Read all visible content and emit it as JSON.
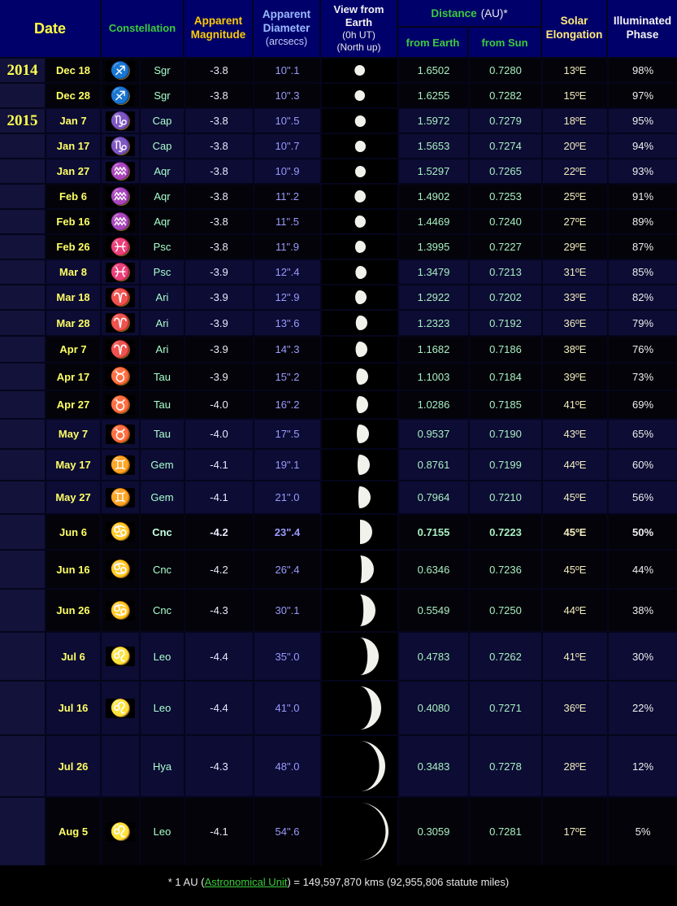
{
  "header": {
    "date": "Date",
    "constellation": "Constellation",
    "magnitude": [
      "Apparent",
      "Magnitude"
    ],
    "diameter": [
      "Apparent",
      "Diameter",
      "(arcsecs)"
    ],
    "view": [
      "View from",
      "Earth",
      "(0h UT)",
      "(North up)"
    ],
    "distance_title": "Distance",
    "distance_unit": "(AU)*",
    "from_earth": "from Earth",
    "from_sun": "from Sun",
    "elongation": [
      "Solar",
      "Elongation"
    ],
    "phase": [
      "Illuminated",
      "Phase"
    ]
  },
  "colors": {
    "header_bg": "#00006b",
    "row_navy": "#0c0c34",
    "row_black": "#030309",
    "date_yellow": "#ffff66",
    "year_yellow": "#ffff4d",
    "constellation_green": "#33cc33",
    "abbr_aqua": "#aaffcf",
    "magnitude_header_gold": "#ffcc00",
    "diameter_blue": "#9b9bff",
    "distance_green": "#a9efc2",
    "elongation_cream": "#f3ecbe",
    "phase_white": "#efefef",
    "link_green": "#3ccc3c",
    "moon_fill": "#f2f2ec"
  },
  "rows": [
    {
      "year": "2014",
      "date": "Dec 18",
      "icon": "sagittarius",
      "constellation": "Sgr",
      "magnitude": "-3.8",
      "diameter": "10\".1",
      "arcsec": 10.1,
      "from_earth": "1.6502",
      "from_sun": "0.7280",
      "elongation": "13ºE",
      "phase": "98%",
      "phase_percent": 98,
      "shade": "black",
      "bold": false
    },
    {
      "year": "",
      "date": "Dec 28",
      "icon": "sagittarius",
      "constellation": "Sgr",
      "magnitude": "-3.8",
      "diameter": "10\".3",
      "arcsec": 10.3,
      "from_earth": "1.6255",
      "from_sun": "0.7282",
      "elongation": "15ºE",
      "phase": "97%",
      "phase_percent": 97,
      "shade": "black",
      "bold": false
    },
    {
      "year": "2015",
      "date": "Jan 7",
      "icon": "capricornus",
      "constellation": "Cap",
      "magnitude": "-3.8",
      "diameter": "10\".5",
      "arcsec": 10.5,
      "from_earth": "1.5972",
      "from_sun": "0.7279",
      "elongation": "18ºE",
      "phase": "95%",
      "phase_percent": 95,
      "shade": "navy",
      "bold": false
    },
    {
      "year": "",
      "date": "Jan 17",
      "icon": "capricornus",
      "constellation": "Cap",
      "magnitude": "-3.8",
      "diameter": "10\".7",
      "arcsec": 10.7,
      "from_earth": "1.5653",
      "from_sun": "0.7274",
      "elongation": "20ºE",
      "phase": "94%",
      "phase_percent": 94,
      "shade": "navy",
      "bold": false
    },
    {
      "year": "",
      "date": "Jan 27",
      "icon": "aquarius",
      "constellation": "Aqr",
      "magnitude": "-3.8",
      "diameter": "10\".9",
      "arcsec": 10.9,
      "from_earth": "1.5297",
      "from_sun": "0.7265",
      "elongation": "22ºE",
      "phase": "93%",
      "phase_percent": 93,
      "shade": "navy",
      "bold": false
    },
    {
      "year": "",
      "date": "Feb 6",
      "icon": "aquarius",
      "constellation": "Aqr",
      "magnitude": "-3.8",
      "diameter": "11\".2",
      "arcsec": 11.2,
      "from_earth": "1.4902",
      "from_sun": "0.7253",
      "elongation": "25ºE",
      "phase": "91%",
      "phase_percent": 91,
      "shade": "black",
      "bold": false
    },
    {
      "year": "",
      "date": "Feb 16",
      "icon": "aquarius",
      "constellation": "Aqr",
      "magnitude": "-3.8",
      "diameter": "11\".5",
      "arcsec": 11.5,
      "from_earth": "1.4469",
      "from_sun": "0.7240",
      "elongation": "27ºE",
      "phase": "89%",
      "phase_percent": 89,
      "shade": "black",
      "bold": false
    },
    {
      "year": "",
      "date": "Feb 26",
      "icon": "pisces",
      "constellation": "Psc",
      "magnitude": "-3.8",
      "diameter": "11\".9",
      "arcsec": 11.9,
      "from_earth": "1.3995",
      "from_sun": "0.7227",
      "elongation": "29ºE",
      "phase": "87%",
      "phase_percent": 87,
      "shade": "black",
      "bold": false
    },
    {
      "year": "",
      "date": "Mar 8",
      "icon": "pisces",
      "constellation": "Psc",
      "magnitude": "-3.9",
      "diameter": "12\".4",
      "arcsec": 12.4,
      "from_earth": "1.3479",
      "from_sun": "0.7213",
      "elongation": "31ºE",
      "phase": "85%",
      "phase_percent": 85,
      "shade": "navy",
      "bold": false
    },
    {
      "year": "",
      "date": "Mar 18",
      "icon": "aries",
      "constellation": "Ari",
      "magnitude": "-3.9",
      "diameter": "12\".9",
      "arcsec": 12.9,
      "from_earth": "1.2922",
      "from_sun": "0.7202",
      "elongation": "33ºE",
      "phase": "82%",
      "phase_percent": 82,
      "shade": "navy",
      "bold": false
    },
    {
      "year": "",
      "date": "Mar 28",
      "icon": "aries",
      "constellation": "Ari",
      "magnitude": "-3.9",
      "diameter": "13\".6",
      "arcsec": 13.6,
      "from_earth": "1.2323",
      "from_sun": "0.7192",
      "elongation": "36ºE",
      "phase": "79%",
      "phase_percent": 79,
      "shade": "navy",
      "bold": false
    },
    {
      "year": "",
      "date": "Apr 7",
      "icon": "aries",
      "constellation": "Ari",
      "magnitude": "-3.9",
      "diameter": "14\".3",
      "arcsec": 14.3,
      "from_earth": "1.1682",
      "from_sun": "0.7186",
      "elongation": "38ºE",
      "phase": "76%",
      "phase_percent": 76,
      "shade": "black",
      "bold": false
    },
    {
      "year": "",
      "date": "Apr 17",
      "icon": "taurus",
      "constellation": "Tau",
      "magnitude": "-3.9",
      "diameter": "15\".2",
      "arcsec": 15.2,
      "from_earth": "1.1003",
      "from_sun": "0.7184",
      "elongation": "39ºE",
      "phase": "73%",
      "phase_percent": 73,
      "shade": "black",
      "bold": false
    },
    {
      "year": "",
      "date": "Apr 27",
      "icon": "taurus",
      "constellation": "Tau",
      "magnitude": "-4.0",
      "diameter": "16\".2",
      "arcsec": 16.2,
      "from_earth": "1.0286",
      "from_sun": "0.7185",
      "elongation": "41ºE",
      "phase": "69%",
      "phase_percent": 69,
      "shade": "black",
      "bold": false
    },
    {
      "year": "",
      "date": "May 7",
      "icon": "taurus",
      "constellation": "Tau",
      "magnitude": "-4.0",
      "diameter": "17\".5",
      "arcsec": 17.5,
      "from_earth": "0.9537",
      "from_sun": "0.7190",
      "elongation": "43ºE",
      "phase": "65%",
      "phase_percent": 65,
      "shade": "navy",
      "bold": false
    },
    {
      "year": "",
      "date": "May 17",
      "icon": "gemini",
      "constellation": "Gem",
      "magnitude": "-4.1",
      "diameter": "19\".1",
      "arcsec": 19.1,
      "from_earth": "0.8761",
      "from_sun": "0.7199",
      "elongation": "44ºE",
      "phase": "60%",
      "phase_percent": 60,
      "shade": "navy",
      "bold": false
    },
    {
      "year": "",
      "date": "May 27",
      "icon": "gemini",
      "constellation": "Gem",
      "magnitude": "-4.1",
      "diameter": "21\".0",
      "arcsec": 21.0,
      "from_earth": "0.7964",
      "from_sun": "0.7210",
      "elongation": "45ºE",
      "phase": "56%",
      "phase_percent": 56,
      "shade": "navy",
      "bold": false
    },
    {
      "year": "",
      "date": "Jun 6",
      "icon": "cancer",
      "constellation": "Cnc",
      "magnitude": "-4.2",
      "diameter": "23\".4",
      "arcsec": 23.4,
      "from_earth": "0.7155",
      "from_sun": "0.7223",
      "elongation": "45ºE",
      "phase": "50%",
      "phase_percent": 50,
      "shade": "black",
      "bold": true
    },
    {
      "year": "",
      "date": "Jun 16",
      "icon": "cancer",
      "constellation": "Cnc",
      "magnitude": "-4.2",
      "diameter": "26\".4",
      "arcsec": 26.4,
      "from_earth": "0.6346",
      "from_sun": "0.7236",
      "elongation": "45ºE",
      "phase": "44%",
      "phase_percent": 44,
      "shade": "black",
      "bold": false
    },
    {
      "year": "",
      "date": "Jun 26",
      "icon": "cancer",
      "constellation": "Cnc",
      "magnitude": "-4.3",
      "diameter": "30\".1",
      "arcsec": 30.1,
      "from_earth": "0.5549",
      "from_sun": "0.7250",
      "elongation": "44ºE",
      "phase": "38%",
      "phase_percent": 38,
      "shade": "black",
      "bold": false
    },
    {
      "year": "",
      "date": "Jul 6",
      "icon": "leo",
      "constellation": "Leo",
      "magnitude": "-4.4",
      "diameter": "35\".0",
      "arcsec": 35.0,
      "from_earth": "0.4783",
      "from_sun": "0.7262",
      "elongation": "41ºE",
      "phase": "30%",
      "phase_percent": 30,
      "shade": "navy",
      "bold": false
    },
    {
      "year": "",
      "date": "Jul 16",
      "icon": "leo",
      "constellation": "Leo",
      "magnitude": "-4.4",
      "diameter": "41\".0",
      "arcsec": 41.0,
      "from_earth": "0.4080",
      "from_sun": "0.7271",
      "elongation": "36ºE",
      "phase": "22%",
      "phase_percent": 22,
      "shade": "navy",
      "bold": false
    },
    {
      "year": "",
      "date": "Jul 26",
      "icon": null,
      "constellation": "Hya",
      "magnitude": "-4.3",
      "diameter": "48\".0",
      "arcsec": 48.0,
      "from_earth": "0.3483",
      "from_sun": "0.7278",
      "elongation": "28ºE",
      "phase": "12%",
      "phase_percent": 12,
      "shade": "navy",
      "bold": false
    },
    {
      "year": "",
      "date": "Aug 5",
      "icon": "leo",
      "constellation": "Leo",
      "magnitude": "-4.1",
      "diameter": "54\".6",
      "arcsec": 54.6,
      "from_earth": "0.3059",
      "from_sun": "0.7281",
      "elongation": "17ºE",
      "phase": "5%",
      "phase_percent": 5,
      "shade": "black",
      "bold": false
    }
  ],
  "footer": {
    "prefix": "* 1 AU (",
    "link_text": "Astronomical Unit",
    "suffix": ") = 149,597,870 kms (92,955,806 statute miles)"
  }
}
